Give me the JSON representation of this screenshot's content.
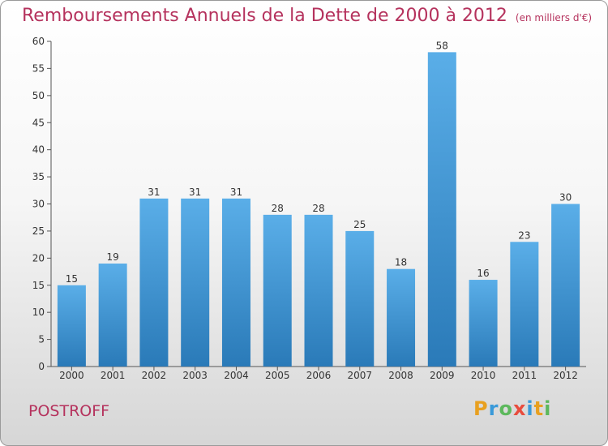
{
  "title": "Remboursements Annuels de la Dette de 2000 à 2012",
  "unit": "(en milliers d'€)",
  "commune": "POSTROFF",
  "logo": {
    "text": "Proxiti",
    "letters": [
      "P",
      "r",
      "o",
      "x",
      "i",
      "t",
      "i"
    ],
    "colors": [
      "#e8a020",
      "#3a9ad9",
      "#5cb85c",
      "#e84c3d",
      "#3a9ad9",
      "#e8a020",
      "#5cb85c"
    ]
  },
  "colors": {
    "title": "#b5325d",
    "bar_top": "#5aaee8",
    "bar_bottom": "#2a7ab8",
    "axis": "#555555"
  },
  "chart_data": {
    "type": "bar",
    "categories": [
      "2000",
      "2001",
      "2002",
      "2003",
      "2004",
      "2005",
      "2006",
      "2007",
      "2008",
      "2009",
      "2010",
      "2011",
      "2012"
    ],
    "values": [
      15,
      19,
      31,
      31,
      31,
      28,
      28,
      25,
      18,
      58,
      16,
      23,
      30
    ],
    "ylim": [
      0,
      60
    ],
    "yticks": [
      0,
      5,
      10,
      15,
      20,
      25,
      30,
      35,
      40,
      45,
      50,
      55,
      60
    ],
    "grid": false,
    "xlabel": "",
    "ylabel": ""
  }
}
